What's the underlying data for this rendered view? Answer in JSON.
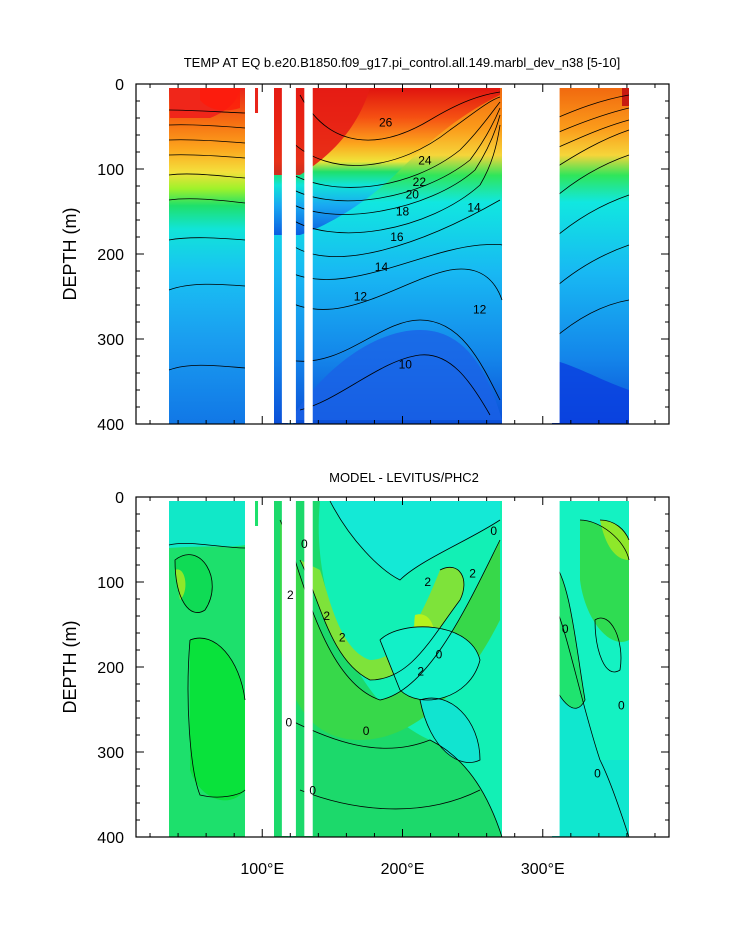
{
  "chart_data": [
    {
      "type": "contour",
      "title": "TEMP AT EQ b.e20.B1850.f09_g17.pi_control.all.149.marbl_dev_n38 [5-10]",
      "ylabel": "DEPTH (m)",
      "xlabel": "",
      "xlim": [
        10,
        390
      ],
      "ylim": [
        0,
        400
      ],
      "y_reversed": true,
      "y_ticks": [
        "0",
        "100",
        "200",
        "300",
        "400"
      ],
      "x_ticks": [],
      "masked_longitudes": [
        [
          97,
          108
        ],
        [
          114,
          124
        ],
        [
          130,
          136
        ],
        [
          280,
          312
        ],
        [
          373,
          390
        ]
      ],
      "contour_labels": [
        {
          "text": "26",
          "x": 188,
          "depth": 45
        },
        {
          "text": "24",
          "x": 216,
          "depth": 90
        },
        {
          "text": "22",
          "x": 212,
          "depth": 115
        },
        {
          "text": "20",
          "x": 207,
          "depth": 130
        },
        {
          "text": "18",
          "x": 200,
          "depth": 150
        },
        {
          "text": "16",
          "x": 196,
          "depth": 180
        },
        {
          "text": "14",
          "x": 185,
          "depth": 215
        },
        {
          "text": "12",
          "x": 170,
          "depth": 250
        },
        {
          "text": "14",
          "x": 251,
          "depth": 145
        },
        {
          "text": "12",
          "x": 255,
          "depth": 265
        },
        {
          "text": "10",
          "x": 202,
          "depth": 330
        }
      ]
    },
    {
      "type": "contour",
      "title": "MODEL - LEVITUS/PHC2",
      "ylabel": "DEPTH (m)",
      "xlabel": "",
      "xlim": [
        10,
        390
      ],
      "ylim": [
        0,
        400
      ],
      "y_reversed": true,
      "y_ticks": [
        "0",
        "100",
        "200",
        "300",
        "400"
      ],
      "x_ticks": [
        "100°E",
        "200°E",
        "300°E"
      ],
      "masked_longitudes": [
        [
          97,
          108
        ],
        [
          114,
          124
        ],
        [
          130,
          136
        ],
        [
          280,
          312
        ],
        [
          373,
          390
        ]
      ],
      "contour_labels": [
        {
          "text": "2",
          "x": 120,
          "depth": 115
        },
        {
          "text": "2",
          "x": 146,
          "depth": 140
        },
        {
          "text": "2",
          "x": 157,
          "depth": 165
        },
        {
          "text": "2",
          "x": 218,
          "depth": 100
        },
        {
          "text": "2",
          "x": 250,
          "depth": 90
        },
        {
          "text": "2",
          "x": 213,
          "depth": 205
        },
        {
          "text": "0",
          "x": 130,
          "depth": 55
        },
        {
          "text": "0",
          "x": 174,
          "depth": 275
        },
        {
          "text": "0",
          "x": 226,
          "depth": 185
        },
        {
          "text": "0",
          "x": 119,
          "depth": 265
        },
        {
          "text": "0",
          "x": 136,
          "depth": 345
        },
        {
          "text": "0",
          "x": 265,
          "depth": 40
        },
        {
          "text": "0",
          "x": 316,
          "depth": 155
        },
        {
          "text": "0",
          "x": 356,
          "depth": 245
        },
        {
          "text": "0",
          "x": 339,
          "depth": 325
        }
      ]
    }
  ]
}
